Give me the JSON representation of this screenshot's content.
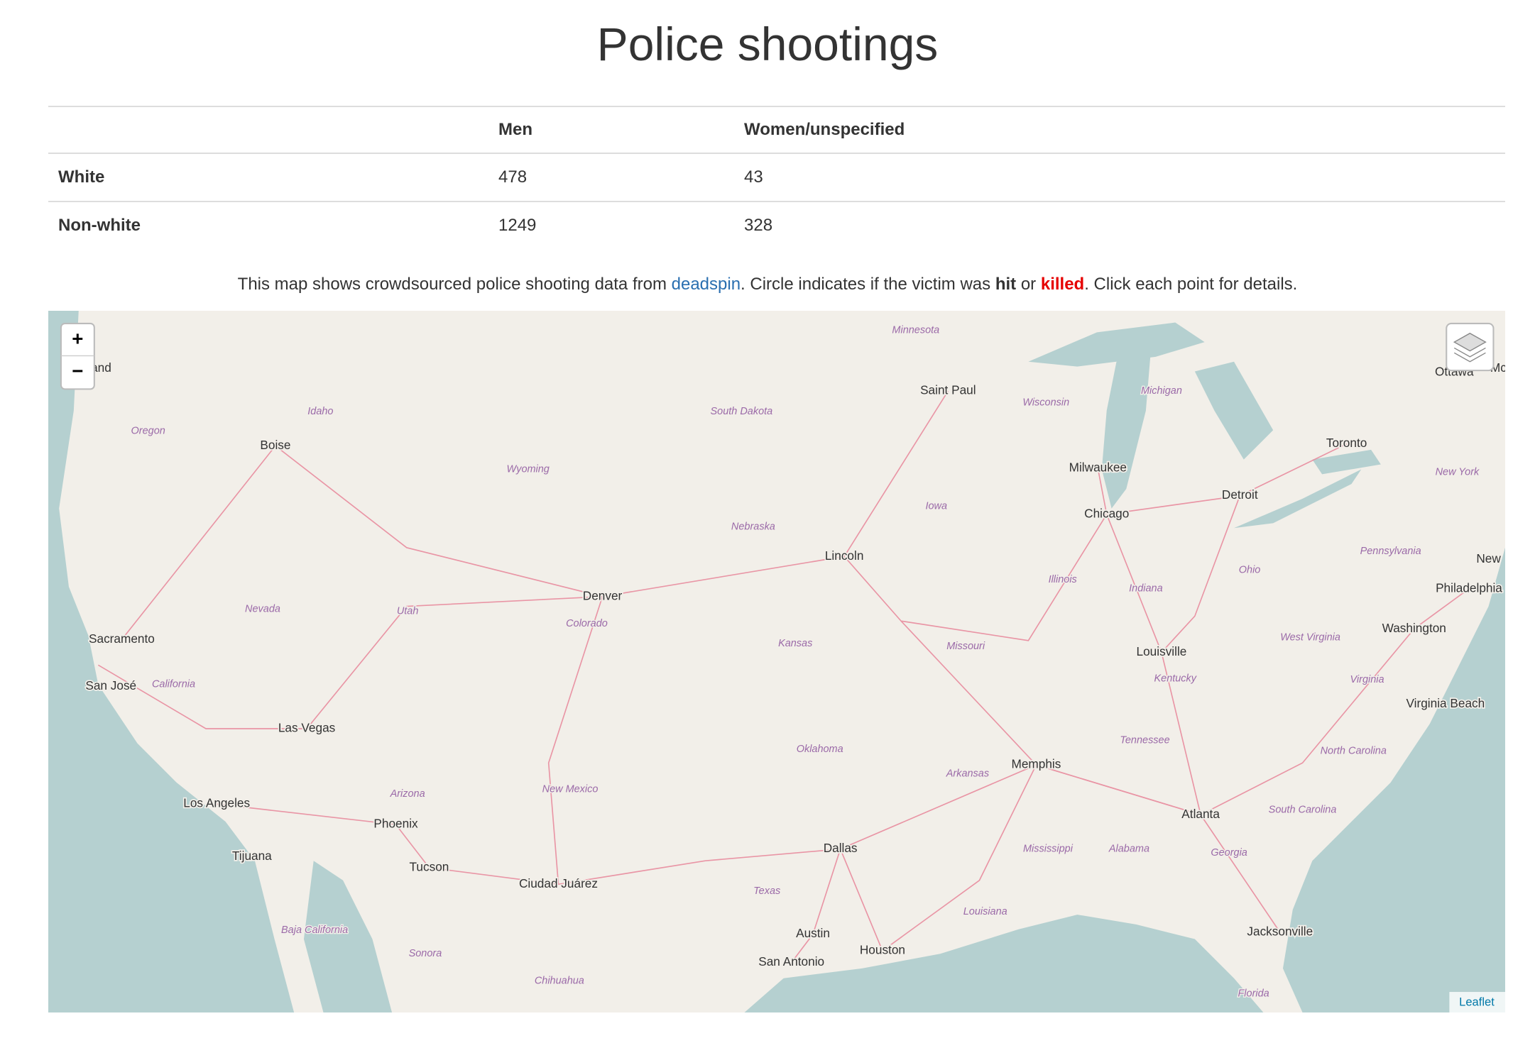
{
  "header": {
    "title": "Police shootings"
  },
  "table": {
    "columns": [
      "Men",
      "Women/unspecified"
    ],
    "rows": [
      [
        "White",
        "478",
        "43"
      ],
      [
        "Non-white",
        "1249",
        "328"
      ]
    ]
  },
  "intro": {
    "parts": [
      "This map shows crowdsourced police shooting data from ",
      "deadspin",
      ". Circle indicates if the victim was ",
      "hit",
      " or ",
      "killed",
      ". Click each point for details."
    ]
  },
  "map": {
    "zoom_in": "+",
    "zoom_out": "−",
    "attribution": "Leaflet",
    "cities": [
      "and",
      "Mc",
      "Saint Paul",
      "Milwaukee",
      "Chicago",
      "Detroit",
      "Toronto",
      "Ottawa",
      "Boise",
      "Lincoln",
      "Denver",
      "Sacramento",
      "San José",
      "Las Vegas",
      "Los Angeles",
      "Phoenix",
      "Tijuana",
      "Tucson",
      "Ciudad Juárez",
      "Dallas",
      "Austin",
      "Houston",
      "San Antonio",
      "Memphis",
      "Atlanta",
      "Louisville",
      "Washington",
      "Philadelphia",
      "New",
      "Virginia Beach",
      "Jacksonville"
    ],
    "regions": [
      "Minnesota",
      "South Dakota",
      "Wisconsin",
      "Michigan",
      "Idaho",
      "Oregon",
      "Wyoming",
      "Iowa",
      "Nebraska",
      "New York",
      "Pennsylvania",
      "Ohio",
      "Illinois",
      "Indiana",
      "Nevada",
      "Utah",
      "Colorado",
      "Kansas",
      "Missouri",
      "West Virginia",
      "Kentucky",
      "Virginia",
      "California",
      "Oklahoma",
      "Tennessee",
      "North Carolina",
      "Arkansas",
      "Arizona",
      "New Mexico",
      "South Carolina",
      "Mississippi",
      "Alabama",
      "Georgia",
      "Texas",
      "Louisiana",
      "Baja California",
      "Sonora",
      "Chihuahua",
      "Florida"
    ]
  }
}
